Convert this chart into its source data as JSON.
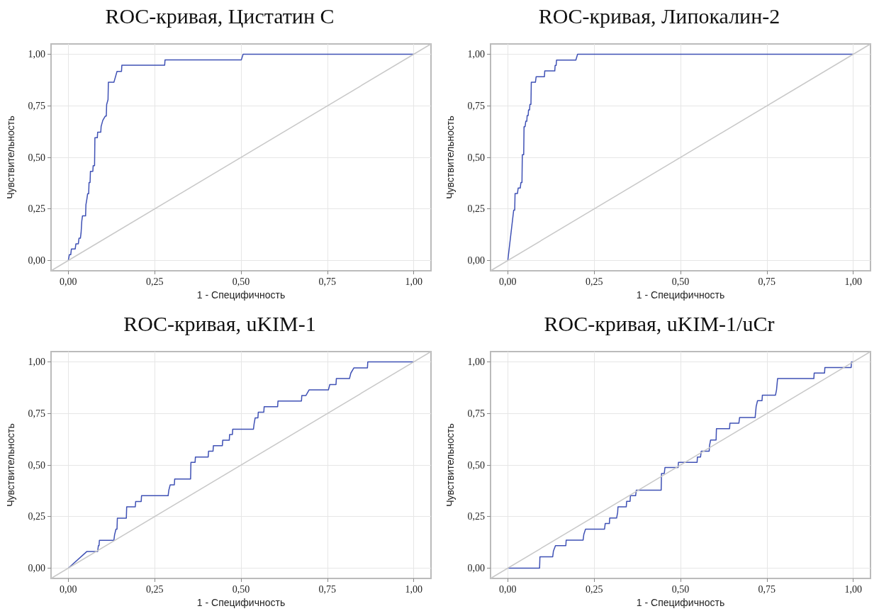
{
  "chart_data": [
    {
      "type": "line",
      "title": "ROC-кривая, Цистатин С",
      "xlabel": "1 - Специфичность",
      "ylabel": "Чувствительность",
      "xlim": [
        -0.05,
        1.05
      ],
      "ylim": [
        -0.05,
        1.05
      ],
      "grid": true,
      "marker": "none",
      "line_style": "solid",
      "xticks": [
        {
          "value": 0,
          "label": "0,00"
        },
        {
          "value": 0.25,
          "label": "0,25"
        },
        {
          "value": 0.5,
          "label": "0,50"
        },
        {
          "value": 0.75,
          "label": "0,75"
        },
        {
          "value": 1,
          "label": "1,00"
        }
      ],
      "yticks": [
        {
          "value": 0,
          "label": "0,00"
        },
        {
          "value": 0.25,
          "label": "0,25"
        },
        {
          "value": 0.5,
          "label": "0,50"
        },
        {
          "value": 0.75,
          "label": "0,75"
        },
        {
          "value": 1,
          "label": "1,00"
        }
      ],
      "series": [
        {
          "color": "#3f51b5",
          "x": [
            0,
            0.003,
            0.007,
            0.009,
            0.02,
            0.022,
            0.029,
            0.031,
            0.035,
            0.037,
            0.038,
            0.039,
            0.041,
            0.05,
            0.051,
            0.054,
            0.056,
            0.059,
            0.06,
            0.063,
            0.064,
            0.071,
            0.072,
            0.076,
            0.077,
            0.084,
            0.085,
            0.094,
            0.095,
            0.1,
            0.107,
            0.11,
            0.111,
            0.115,
            0.116,
            0.132,
            0.141,
            0.154,
            0.155,
            0.279,
            0.28,
            0.501,
            0.506,
            1
          ],
          "values": [
            0,
            0.028,
            0.028,
            0.056,
            0.056,
            0.081,
            0.081,
            0.108,
            0.108,
            0.135,
            0.135,
            0.19,
            0.216,
            0.216,
            0.27,
            0.3,
            0.324,
            0.324,
            0.378,
            0.378,
            0.432,
            0.432,
            0.46,
            0.46,
            0.595,
            0.595,
            0.622,
            0.622,
            0.65,
            0.68,
            0.7,
            0.7,
            0.756,
            0.78,
            0.864,
            0.864,
            0.917,
            0.917,
            0.947,
            0.947,
            0.973,
            0.973,
            1,
            1
          ]
        },
        {
          "color": "#c8c8c8",
          "x": [
            -0.05,
            1.05
          ],
          "values": [
            -0.05,
            1.05
          ]
        }
      ]
    },
    {
      "type": "line",
      "title": "ROC-кривая, Липокалин-2",
      "xlabel": "1 - Специфичность",
      "ylabel": "Чувствительность",
      "xlim": [
        -0.05,
        1.05
      ],
      "ylim": [
        -0.05,
        1.05
      ],
      "grid": true,
      "marker": "none",
      "line_style": "solid",
      "xticks": [
        {
          "value": 0,
          "label": "0,00"
        },
        {
          "value": 0.25,
          "label": "0,25"
        },
        {
          "value": 0.5,
          "label": "0,50"
        },
        {
          "value": 0.75,
          "label": "0,75"
        },
        {
          "value": 1,
          "label": "1,00"
        }
      ],
      "yticks": [
        {
          "value": 0,
          "label": "0,00"
        },
        {
          "value": 0.25,
          "label": "0,25"
        },
        {
          "value": 0.5,
          "label": "0,50"
        },
        {
          "value": 0.75,
          "label": "0,75"
        },
        {
          "value": 1,
          "label": "1,00"
        }
      ],
      "series": [
        {
          "color": "#3f51b5",
          "x": [
            0,
            0.017,
            0.02,
            0.021,
            0.028,
            0.03,
            0.036,
            0.038,
            0.041,
            0.042,
            0.046,
            0.047,
            0.05,
            0.052,
            0.055,
            0.056,
            0.059,
            0.06,
            0.063,
            0.064,
            0.067,
            0.068,
            0.08,
            0.082,
            0.106,
            0.107,
            0.136,
            0.137,
            0.14,
            0.141,
            0.197,
            0.202,
            1
          ],
          "values": [
            0,
            0.244,
            0.244,
            0.325,
            0.325,
            0.351,
            0.351,
            0.378,
            0.378,
            0.513,
            0.513,
            0.649,
            0.649,
            0.675,
            0.675,
            0.703,
            0.703,
            0.73,
            0.73,
            0.757,
            0.757,
            0.864,
            0.864,
            0.891,
            0.891,
            0.919,
            0.919,
            0.946,
            0.946,
            0.972,
            0.972,
            1,
            1
          ]
        },
        {
          "color": "#c8c8c8",
          "x": [
            -0.05,
            1.05
          ],
          "values": [
            -0.05,
            1.05
          ]
        }
      ]
    },
    {
      "type": "line",
      "title": "ROC-кривая, uKIM-1",
      "xlabel": "1 - Специфичность",
      "ylabel": "Чувствительность",
      "xlim": [
        -0.05,
        1.05
      ],
      "ylim": [
        -0.05,
        1.05
      ],
      "grid": true,
      "marker": "none",
      "line_style": "solid",
      "xticks": [
        {
          "value": 0,
          "label": "0,00"
        },
        {
          "value": 0.25,
          "label": "0,25"
        },
        {
          "value": 0.5,
          "label": "0,50"
        },
        {
          "value": 0.75,
          "label": "0,75"
        },
        {
          "value": 1,
          "label": "1,00"
        }
      ],
      "yticks": [
        {
          "value": 0,
          "label": "0,00"
        },
        {
          "value": 0.25,
          "label": "0,25"
        },
        {
          "value": 0.5,
          "label": "0,50"
        },
        {
          "value": 0.75,
          "label": "0,75"
        },
        {
          "value": 1,
          "label": "1,00"
        }
      ],
      "series": [
        {
          "color": "#3f51b5",
          "x": [
            0,
            0.054,
            0.085,
            0.087,
            0.089,
            0.09,
            0.132,
            0.134,
            0.138,
            0.141,
            0.142,
            0.168,
            0.169,
            0.194,
            0.195,
            0.211,
            0.212,
            0.289,
            0.291,
            0.295,
            0.307,
            0.308,
            0.354,
            0.355,
            0.367,
            0.368,
            0.405,
            0.406,
            0.419,
            0.42,
            0.446,
            0.447,
            0.466,
            0.467,
            0.475,
            0.476,
            0.536,
            0.538,
            0.541,
            0.549,
            0.55,
            0.566,
            0.567,
            0.606,
            0.607,
            0.675,
            0.676,
            0.688,
            0.697,
            0.753,
            0.757,
            0.775,
            0.776,
            0.814,
            0.818,
            0.827,
            0.866,
            0.867,
            1
          ],
          "values": [
            0,
            0.081,
            0.081,
            0.109,
            0.109,
            0.135,
            0.135,
            0.162,
            0.189,
            0.189,
            0.242,
            0.242,
            0.297,
            0.297,
            0.323,
            0.323,
            0.351,
            0.351,
            0.378,
            0.404,
            0.404,
            0.432,
            0.432,
            0.513,
            0.513,
            0.539,
            0.539,
            0.567,
            0.567,
            0.594,
            0.594,
            0.62,
            0.62,
            0.648,
            0.648,
            0.674,
            0.674,
            0.701,
            0.729,
            0.729,
            0.756,
            0.756,
            0.783,
            0.783,
            0.81,
            0.81,
            0.837,
            0.837,
            0.864,
            0.864,
            0.89,
            0.89,
            0.919,
            0.919,
            0.946,
            0.971,
            0.971,
            1,
            1
          ]
        },
        {
          "color": "#c8c8c8",
          "x": [
            -0.05,
            1.05
          ],
          "values": [
            -0.05,
            1.05
          ]
        }
      ]
    },
    {
      "type": "line",
      "title": "ROC-кривая, uKIM-1/uCr",
      "xlabel": "1 - Специфичность",
      "ylabel": "Чувствительность",
      "xlim": [
        -0.05,
        1.05
      ],
      "ylim": [
        -0.05,
        1.05
      ],
      "grid": true,
      "marker": "none",
      "line_style": "solid",
      "xticks": [
        {
          "value": 0,
          "label": "0,00"
        },
        {
          "value": 0.25,
          "label": "0,25"
        },
        {
          "value": 0.5,
          "label": "0,50"
        },
        {
          "value": 0.75,
          "label": "0,75"
        },
        {
          "value": 1,
          "label": "1,00"
        }
      ],
      "yticks": [
        {
          "value": 0,
          "label": "0,00"
        },
        {
          "value": 0.25,
          "label": "0,25"
        },
        {
          "value": 0.5,
          "label": "0,50"
        },
        {
          "value": 0.75,
          "label": "0,75"
        },
        {
          "value": 1,
          "label": "1,00"
        }
      ],
      "series": [
        {
          "color": "#3f51b5",
          "x": [
            0,
            0.092,
            0.093,
            0.13,
            0.132,
            0.138,
            0.168,
            0.169,
            0.218,
            0.22,
            0.225,
            0.28,
            0.282,
            0.294,
            0.295,
            0.315,
            0.318,
            0.319,
            0.343,
            0.344,
            0.354,
            0.355,
            0.37,
            0.372,
            0.444,
            0.445,
            0.453,
            0.455,
            0.493,
            0.494,
            0.548,
            0.549,
            0.558,
            0.56,
            0.583,
            0.584,
            0.587,
            0.603,
            0.604,
            0.642,
            0.643,
            0.669,
            0.671,
            0.716,
            0.719,
            0.723,
            0.736,
            0.737,
            0.775,
            0.778,
            0.781,
            0.886,
            0.887,
            0.917,
            0.918,
            0.994,
            0.995,
            1
          ],
          "values": [
            0,
            0,
            0.055,
            0.055,
            0.082,
            0.109,
            0.109,
            0.136,
            0.136,
            0.163,
            0.189,
            0.189,
            0.216,
            0.216,
            0.243,
            0.243,
            0.27,
            0.297,
            0.297,
            0.324,
            0.324,
            0.351,
            0.351,
            0.378,
            0.378,
            0.459,
            0.459,
            0.488,
            0.488,
            0.513,
            0.513,
            0.539,
            0.539,
            0.567,
            0.567,
            0.594,
            0.621,
            0.621,
            0.676,
            0.676,
            0.703,
            0.703,
            0.73,
            0.73,
            0.784,
            0.812,
            0.812,
            0.839,
            0.839,
            0.865,
            0.919,
            0.919,
            0.946,
            0.946,
            0.973,
            0.973,
            1,
            1
          ]
        },
        {
          "color": "#c8c8c8",
          "x": [
            -0.05,
            1.05
          ],
          "values": [
            -0.05,
            1.05
          ]
        }
      ]
    }
  ]
}
